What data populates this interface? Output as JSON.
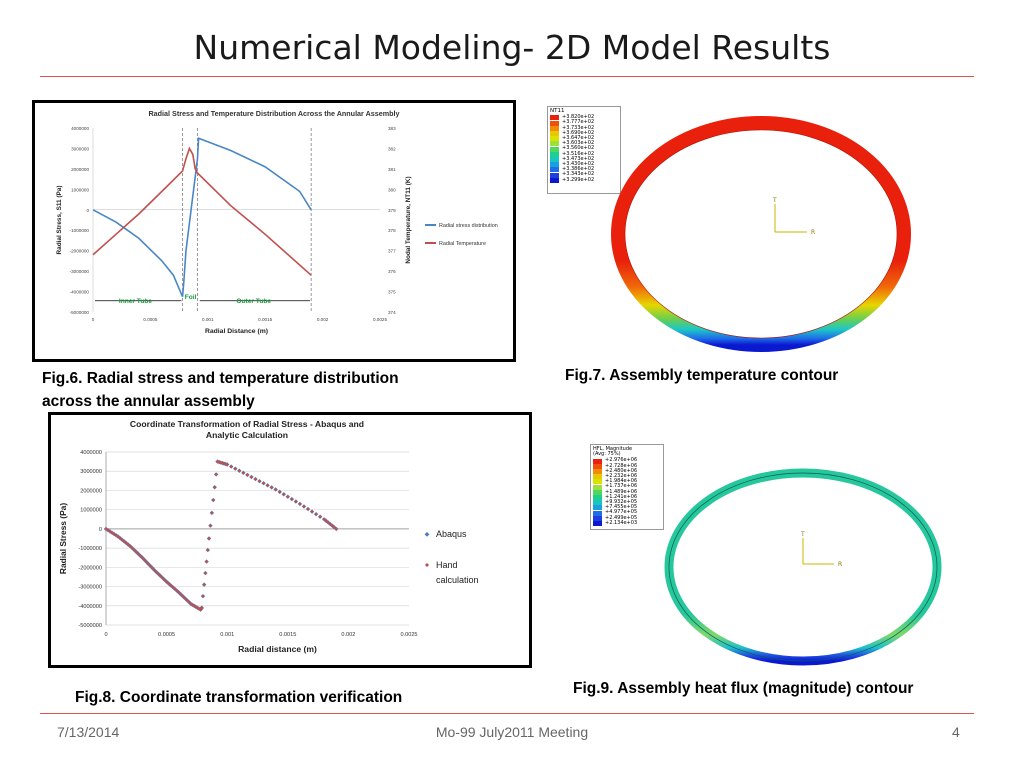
{
  "slide": {
    "title": "Numerical Modeling- 2D Model  Results",
    "footer_date": "7/13/2014",
    "footer_center": "Mo-99 July2011 Meeting",
    "footer_page": "4",
    "accent_color": "#d9534f"
  },
  "captions": {
    "fig6_line1": "Fig.6. Radial stress and temperature distribution",
    "fig6_line2": "across the annular assembly",
    "fig7": "Fig.7. Assembly temperature contour",
    "fig8": "Fig.8. Coordinate transformation verification",
    "fig9": "Fig.9. Assembly heat flux (magnitude) contour"
  },
  "fig6_annotations": {
    "inner": "Inner Tube",
    "foil": "Foil",
    "outer": "Outer Tube"
  },
  "contour7": {
    "legend_title": "NT11",
    "legend_values": [
      "+3.820e+02",
      "+3.777e+02",
      "+3.733e+02",
      "+3.690e+02",
      "+3.647e+02",
      "+3.603e+02",
      "+3.560e+02",
      "+3.516e+02",
      "+3.473e+02",
      "+3.430e+02",
      "+3.386e+02",
      "+3.343e+02",
      "+3.299e+02"
    ],
    "triad_t": "T",
    "triad_r": "R"
  },
  "contour9": {
    "legend_title": "HFL, Magnitude",
    "legend_subtitle": "(Avg: 75%)",
    "legend_values": [
      "+2.976e+06",
      "+2.728e+06",
      "+2.480e+06",
      "+2.232e+06",
      "+1.984e+06",
      "+1.737e+06",
      "+1.489e+06",
      "+1.241e+06",
      "+9.932e+05",
      "+7.455e+05",
      "+4.977e+05",
      "+2.499e+05",
      "+2.134e+03"
    ],
    "triad_t": "T",
    "triad_r": "R"
  },
  "chart_data": [
    {
      "type": "line",
      "title": "Radial Stress and Temperature Distribution Across the Annular  Assembly",
      "xlabel": "Radial Distance (m)",
      "ylabel": "Radial Stress, S11 (Pa)",
      "y2label": "Nodal Temperature, NT11 (K)",
      "xlim": [
        0,
        0.0025
      ],
      "ylim": [
        -5000000,
        4000000
      ],
      "y2lim": [
        374,
        383
      ],
      "x_ticks": [
        "0",
        "0.0005",
        "0.001",
        "0.0015",
        "0.002",
        "0.0025"
      ],
      "y_ticks": [
        "4000000",
        "3000000",
        "2000000",
        "1000000",
        "0",
        "-1000000",
        "-2000000",
        "-3000000",
        "-4000000",
        "-5000000"
      ],
      "y2_ticks": [
        "383",
        "382",
        "381",
        "380",
        "379",
        "378",
        "377",
        "376",
        "375",
        "374"
      ],
      "grid": false,
      "legend_position": "right",
      "series": [
        {
          "name": "Radial stress distribution",
          "axis": "left",
          "color": "#4a86c5",
          "x": [
            0,
            0.0002,
            0.0004,
            0.0006,
            0.0007,
            0.00078,
            0.00079,
            0.00081,
            0.00091,
            0.00092,
            0.0012,
            0.0015,
            0.0018,
            0.0019
          ],
          "y": [
            0,
            -600000,
            -1400000,
            -2500000,
            -3200000,
            -4250000,
            -3600000,
            -2000000,
            2500000,
            3500000,
            2900000,
            2100000,
            900000,
            0
          ]
        },
        {
          "name": "Radial Temperature",
          "axis": "right",
          "color": "#c0504d",
          "x": [
            0,
            0.0002,
            0.0004,
            0.0006,
            0.00078,
            0.00081,
            0.00084,
            0.00087,
            0.00089,
            0.00091,
            0.0012,
            0.0015,
            0.0019
          ],
          "y": [
            376.8,
            377.8,
            378.8,
            379.9,
            380.9,
            381.5,
            382.0,
            381.7,
            381.0,
            380.8,
            379.2,
            377.8,
            375.8
          ]
        }
      ]
    },
    {
      "type": "scatter",
      "title": "Coordinate Transformation of Radial Stress - Abaqus and Analytic Calculation",
      "xlabel": "Radial distance (m)",
      "ylabel": "Radial Stress (Pa)",
      "xlim": [
        0,
        0.0025
      ],
      "ylim": [
        -5000000,
        4000000
      ],
      "x_ticks": [
        "0",
        "0.0005",
        "0.001",
        "0.0015",
        "0.002",
        "0.0025"
      ],
      "y_ticks": [
        "4000000",
        "3000000",
        "2000000",
        "1000000",
        "0",
        "-1000000",
        "-2000000",
        "-3000000",
        "-4000000",
        "-5000000"
      ],
      "grid": true,
      "legend_position": "right",
      "series": [
        {
          "name": "Abaqus",
          "marker": "diamond",
          "color": "#4a7ebb",
          "x": [
            0,
            0.0001,
            0.0002,
            0.0003,
            0.0004,
            0.0005,
            0.0006,
            0.0007,
            0.00078,
            0.00079,
            0.00085,
            0.00092,
            0.001,
            0.0012,
            0.0014,
            0.0016,
            0.0018,
            0.0019
          ],
          "y": [
            0,
            -400000,
            -900000,
            -1500000,
            -2150000,
            -2750000,
            -3300000,
            -3900000,
            -4200000,
            -4100000,
            -500000,
            3500000,
            3350000,
            2700000,
            2050000,
            1300000,
            500000,
            0
          ]
        },
        {
          "name": "Hand calculation",
          "marker": "circle",
          "color": "#c0504d",
          "x": [
            0,
            0.0001,
            0.0002,
            0.0003,
            0.0004,
            0.0005,
            0.0006,
            0.0007,
            0.00078,
            0.00079,
            0.00085,
            0.00092,
            0.001,
            0.0012,
            0.0014,
            0.0016,
            0.0018,
            0.0019
          ],
          "y": [
            0,
            -400000,
            -900000,
            -1500000,
            -2150000,
            -2750000,
            -3300000,
            -3900000,
            -4200000,
            -4100000,
            -500000,
            3500000,
            3350000,
            2700000,
            2050000,
            1300000,
            500000,
            0
          ]
        }
      ]
    }
  ]
}
